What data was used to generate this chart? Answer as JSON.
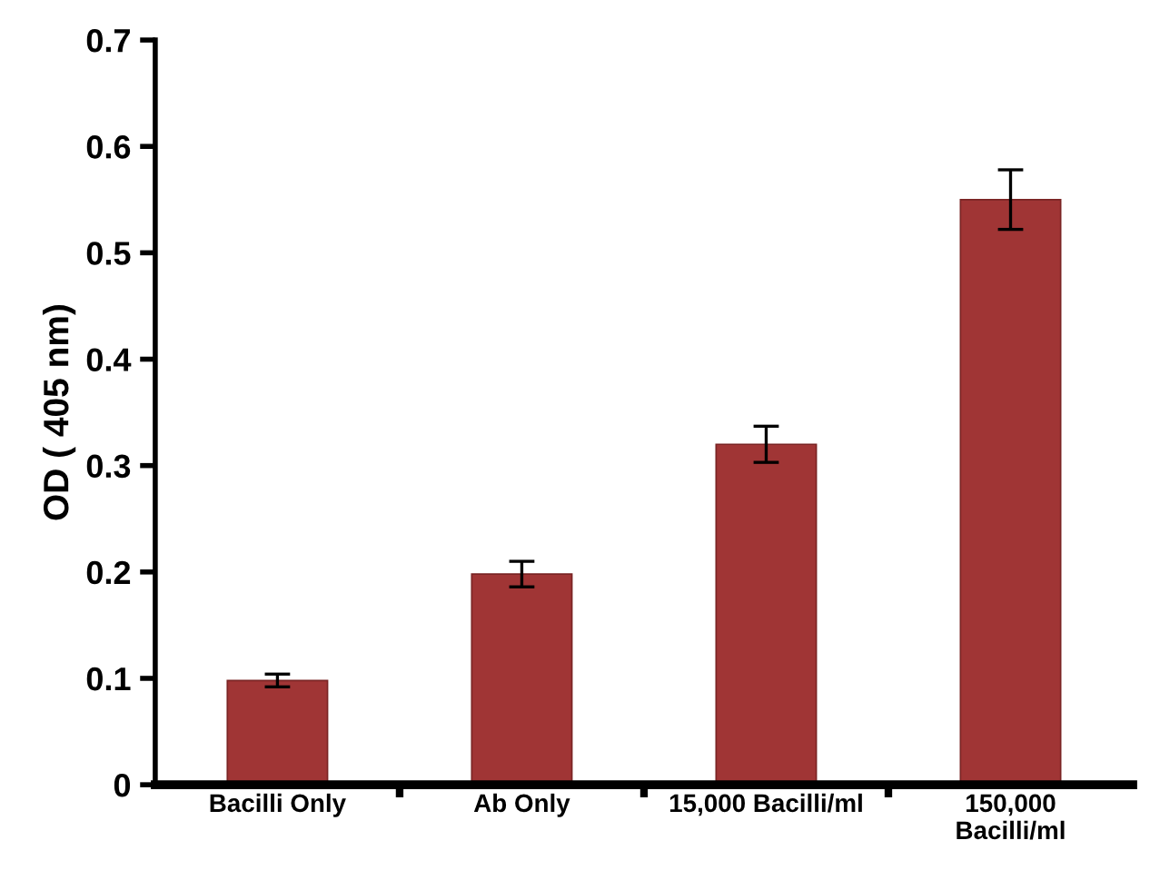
{
  "chart_data": {
    "type": "bar",
    "ylabel": "OD ( 405 nm)",
    "categories": [
      "Bacilli Only",
      "Ab Only",
      "15,000 Bacilli/ml",
      "150,000\nBacilli/ml"
    ],
    "values": [
      0.098,
      0.198,
      0.32,
      0.55
    ],
    "errors": [
      0.006,
      0.012,
      0.017,
      0.028
    ],
    "color": "#a03535",
    "ylim": [
      0,
      0.7
    ],
    "yticks": [
      0,
      0.1,
      0.2,
      0.3,
      0.4,
      0.5,
      0.6,
      0.7
    ],
    "grid": false,
    "legend": false
  }
}
